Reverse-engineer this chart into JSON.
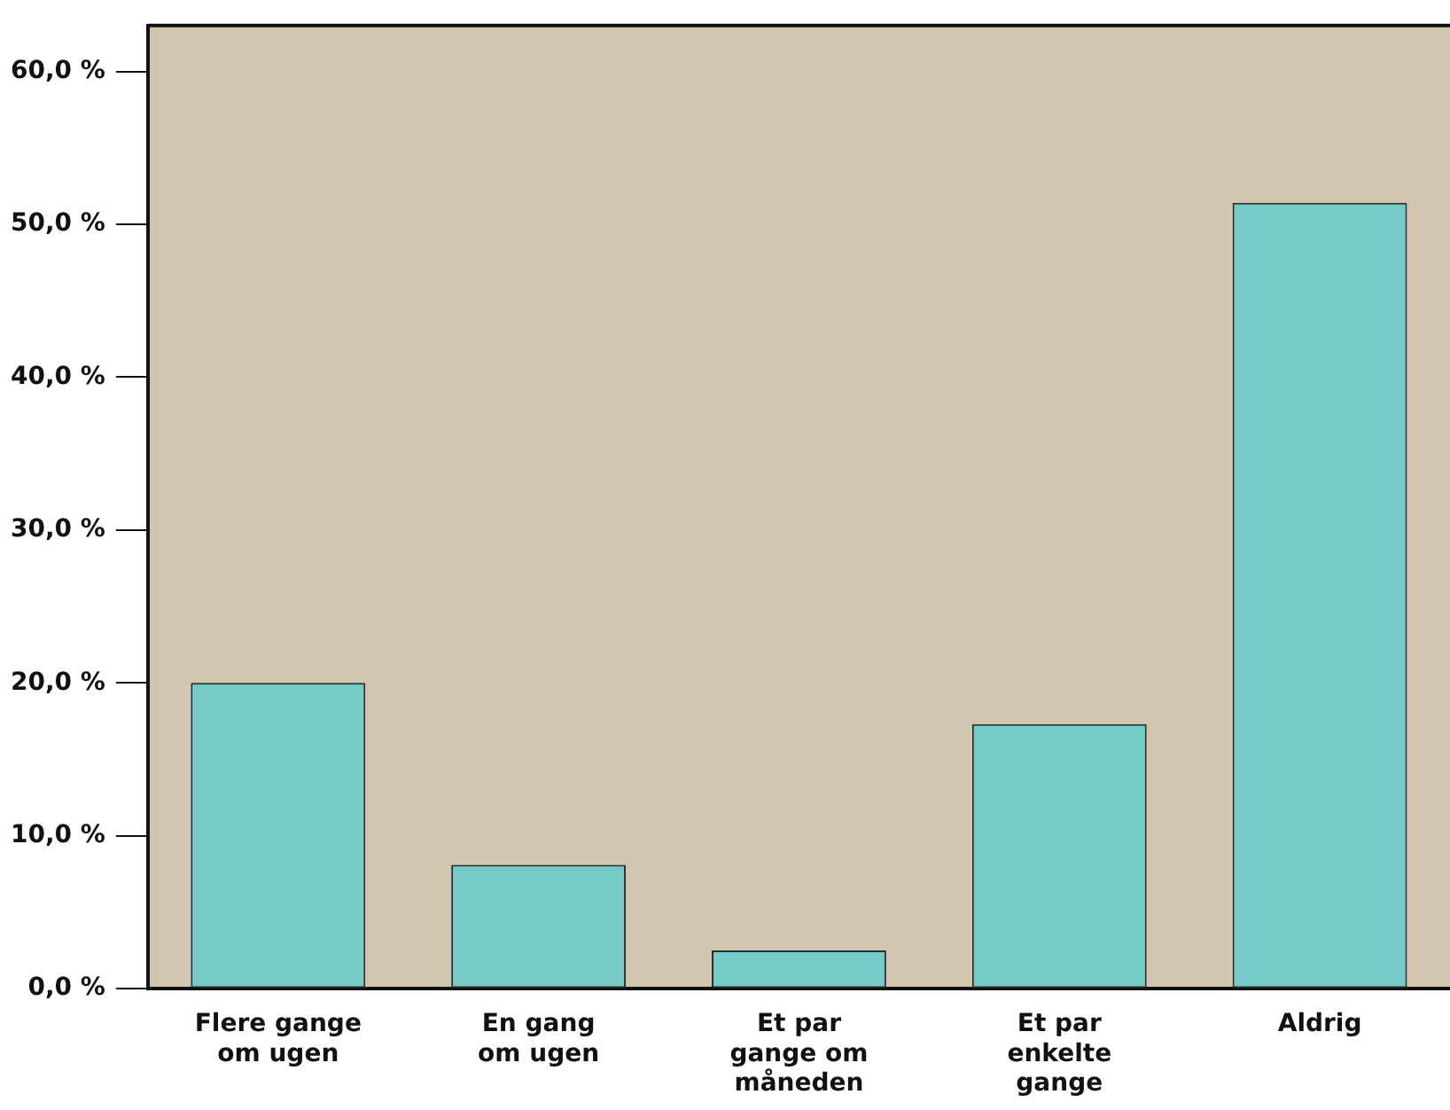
{
  "chart_data": {
    "type": "bar",
    "categories": [
      "Flere gange\nom ugen",
      "En gang\nom ugen",
      "Et par\ngange om\nmåneden",
      "Et par\nenkelte\ngange",
      "Aldrig"
    ],
    "values": [
      20.0,
      8.1,
      2.5,
      17.3,
      51.4
    ],
    "color": "#74cbc8",
    "ylim": [
      0,
      63
    ],
    "yticks": [
      {
        "value": 0,
        "label": "0,0 %"
      },
      {
        "value": 10,
        "label": "10,0 %"
      },
      {
        "value": 20,
        "label": "20,0 %"
      },
      {
        "value": 30,
        "label": "30,0 %"
      },
      {
        "value": 40,
        "label": "40,0 %"
      },
      {
        "value": 50,
        "label": "50,0 %"
      },
      {
        "value": 60,
        "label": "60,0 %"
      }
    ],
    "grid": false,
    "legend": false
  }
}
